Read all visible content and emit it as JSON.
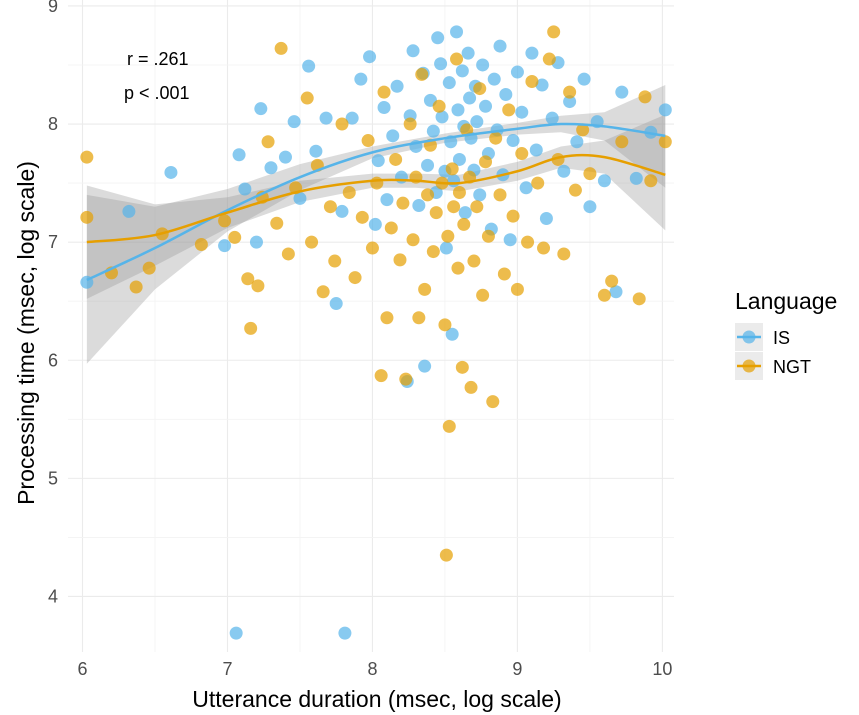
{
  "chart_data": {
    "type": "scatter",
    "xlabel": "Utterance duration (msec, log scale)",
    "ylabel": "Processing time (msec, log scale)",
    "xlim": [
      5.9,
      10.08
    ],
    "ylim": [
      3.53,
      9.05
    ],
    "x_ticks": [
      6,
      7,
      8,
      9,
      10
    ],
    "y_ticks": [
      4,
      5,
      6,
      7,
      8,
      9
    ],
    "grid": true,
    "legend": {
      "title": "Language",
      "position": "right"
    },
    "annotations": [
      "r = .261",
      "p < .001"
    ],
    "series": [
      {
        "name": "IS",
        "color": "#56B4E9",
        "points": [
          [
            6.03,
            6.66
          ],
          [
            6.32,
            7.26
          ],
          [
            6.61,
            7.59
          ],
          [
            6.98,
            6.97
          ],
          [
            7.06,
            3.69
          ],
          [
            7.08,
            7.74
          ],
          [
            7.12,
            7.45
          ],
          [
            7.2,
            7.0
          ],
          [
            7.23,
            8.13
          ],
          [
            7.3,
            7.63
          ],
          [
            7.4,
            7.72
          ],
          [
            7.46,
            8.02
          ],
          [
            7.5,
            7.37
          ],
          [
            7.56,
            8.49
          ],
          [
            7.61,
            7.77
          ],
          [
            7.68,
            8.05
          ],
          [
            7.75,
            6.48
          ],
          [
            7.79,
            7.26
          ],
          [
            7.81,
            3.69
          ],
          [
            7.86,
            8.05
          ],
          [
            7.92,
            8.38
          ],
          [
            7.98,
            8.57
          ],
          [
            8.02,
            7.15
          ],
          [
            8.04,
            7.69
          ],
          [
            8.08,
            8.14
          ],
          [
            8.1,
            7.36
          ],
          [
            8.14,
            7.9
          ],
          [
            8.17,
            8.32
          ],
          [
            8.2,
            7.55
          ],
          [
            8.24,
            5.82
          ],
          [
            8.26,
            8.07
          ],
          [
            8.28,
            8.62
          ],
          [
            8.3,
            7.81
          ],
          [
            8.32,
            7.31
          ],
          [
            8.35,
            8.43
          ],
          [
            8.36,
            5.95
          ],
          [
            8.38,
            7.65
          ],
          [
            8.4,
            8.2
          ],
          [
            8.42,
            7.94
          ],
          [
            8.44,
            7.42
          ],
          [
            8.45,
            8.73
          ],
          [
            8.47,
            8.51
          ],
          [
            8.48,
            8.06
          ],
          [
            8.5,
            7.6
          ],
          [
            8.51,
            6.95
          ],
          [
            8.53,
            8.35
          ],
          [
            8.54,
            7.85
          ],
          [
            8.55,
            6.22
          ],
          [
            8.56,
            7.52
          ],
          [
            8.58,
            8.78
          ],
          [
            8.59,
            8.12
          ],
          [
            8.6,
            7.7
          ],
          [
            8.62,
            8.45
          ],
          [
            8.63,
            7.98
          ],
          [
            8.64,
            7.25
          ],
          [
            8.66,
            8.6
          ],
          [
            8.67,
            8.22
          ],
          [
            8.68,
            7.88
          ],
          [
            8.7,
            7.61
          ],
          [
            8.71,
            8.32
          ],
          [
            8.72,
            8.02
          ],
          [
            8.74,
            7.4
          ],
          [
            8.76,
            8.5
          ],
          [
            8.78,
            8.15
          ],
          [
            8.8,
            7.75
          ],
          [
            8.82,
            7.11
          ],
          [
            8.84,
            8.38
          ],
          [
            8.86,
            7.95
          ],
          [
            8.88,
            8.66
          ],
          [
            8.9,
            7.57
          ],
          [
            8.92,
            8.25
          ],
          [
            8.95,
            7.02
          ],
          [
            8.97,
            7.86
          ],
          [
            9.0,
            8.44
          ],
          [
            9.03,
            8.1
          ],
          [
            9.06,
            7.46
          ],
          [
            9.1,
            8.6
          ],
          [
            9.13,
            7.78
          ],
          [
            9.17,
            8.33
          ],
          [
            9.2,
            7.2
          ],
          [
            9.24,
            8.05
          ],
          [
            9.28,
            8.52
          ],
          [
            9.32,
            7.6
          ],
          [
            9.36,
            8.19
          ],
          [
            9.41,
            7.85
          ],
          [
            9.46,
            8.38
          ],
          [
            9.5,
            7.3
          ],
          [
            9.55,
            8.02
          ],
          [
            9.6,
            7.52
          ],
          [
            9.68,
            6.58
          ],
          [
            9.72,
            8.27
          ],
          [
            9.82,
            7.54
          ],
          [
            9.92,
            7.93
          ],
          [
            10.02,
            8.12
          ]
        ],
        "trend": [
          [
            6.03,
            6.68
          ],
          [
            6.5,
            6.95
          ],
          [
            7.0,
            7.27
          ],
          [
            7.5,
            7.55
          ],
          [
            8.0,
            7.76
          ],
          [
            8.5,
            7.88
          ],
          [
            9.0,
            7.96
          ],
          [
            9.3,
            8.0
          ],
          [
            9.6,
            7.98
          ],
          [
            10.02,
            7.9
          ]
        ],
        "ci_upper": [
          [
            6.03,
            7.4
          ],
          [
            6.5,
            7.3
          ],
          [
            7.0,
            7.45
          ],
          [
            7.5,
            7.66
          ],
          [
            8.0,
            7.81
          ],
          [
            8.5,
            7.92
          ],
          [
            9.0,
            8.01
          ],
          [
            9.3,
            8.07
          ],
          [
            9.6,
            8.1
          ],
          [
            10.02,
            8.33
          ]
        ],
        "ci_lower": [
          [
            6.03,
            5.97
          ],
          [
            6.5,
            6.6
          ],
          [
            7.0,
            7.09
          ],
          [
            7.5,
            7.44
          ],
          [
            8.0,
            7.71
          ],
          [
            8.5,
            7.84
          ],
          [
            9.0,
            7.91
          ],
          [
            9.3,
            7.93
          ],
          [
            9.6,
            7.86
          ],
          [
            10.02,
            7.46
          ]
        ]
      },
      {
        "name": "NGT",
        "color": "#E69F00",
        "points": [
          [
            6.03,
            7.72
          ],
          [
            6.03,
            7.21
          ],
          [
            6.2,
            6.74
          ],
          [
            6.37,
            6.62
          ],
          [
            6.46,
            6.78
          ],
          [
            6.55,
            7.07
          ],
          [
            6.82,
            6.98
          ],
          [
            6.98,
            7.18
          ],
          [
            7.05,
            7.04
          ],
          [
            7.14,
            6.69
          ],
          [
            7.16,
            6.27
          ],
          [
            7.21,
            6.63
          ],
          [
            7.24,
            7.38
          ],
          [
            7.28,
            7.85
          ],
          [
            7.34,
            7.16
          ],
          [
            7.37,
            8.64
          ],
          [
            7.42,
            6.9
          ],
          [
            7.47,
            7.46
          ],
          [
            7.55,
            8.22
          ],
          [
            7.58,
            7.0
          ],
          [
            7.62,
            7.65
          ],
          [
            7.66,
            6.58
          ],
          [
            7.71,
            7.3
          ],
          [
            7.74,
            6.84
          ],
          [
            7.79,
            8.0
          ],
          [
            7.84,
            7.42
          ],
          [
            7.88,
            6.7
          ],
          [
            7.93,
            7.21
          ],
          [
            7.97,
            7.86
          ],
          [
            8.0,
            6.95
          ],
          [
            8.03,
            7.5
          ],
          [
            8.06,
            5.87
          ],
          [
            8.08,
            8.27
          ],
          [
            8.1,
            6.36
          ],
          [
            8.13,
            7.12
          ],
          [
            8.16,
            7.7
          ],
          [
            8.19,
            6.85
          ],
          [
            8.21,
            7.33
          ],
          [
            8.23,
            5.84
          ],
          [
            8.26,
            8.0
          ],
          [
            8.28,
            7.02
          ],
          [
            8.3,
            7.55
          ],
          [
            8.32,
            6.36
          ],
          [
            8.34,
            8.42
          ],
          [
            8.36,
            6.6
          ],
          [
            8.38,
            7.4
          ],
          [
            8.4,
            7.82
          ],
          [
            8.42,
            6.92
          ],
          [
            8.44,
            7.25
          ],
          [
            8.46,
            8.15
          ],
          [
            8.48,
            7.5
          ],
          [
            8.5,
            6.3
          ],
          [
            8.51,
            4.35
          ],
          [
            8.52,
            7.05
          ],
          [
            8.53,
            5.44
          ],
          [
            8.55,
            7.62
          ],
          [
            8.56,
            7.3
          ],
          [
            8.58,
            8.55
          ],
          [
            8.59,
            6.78
          ],
          [
            8.6,
            7.42
          ],
          [
            8.62,
            5.94
          ],
          [
            8.63,
            7.15
          ],
          [
            8.65,
            7.95
          ],
          [
            8.67,
            7.55
          ],
          [
            8.68,
            5.77
          ],
          [
            8.7,
            6.84
          ],
          [
            8.72,
            7.3
          ],
          [
            8.74,
            8.3
          ],
          [
            8.76,
            6.55
          ],
          [
            8.78,
            7.68
          ],
          [
            8.8,
            7.05
          ],
          [
            8.83,
            5.65
          ],
          [
            8.85,
            7.88
          ],
          [
            8.88,
            7.4
          ],
          [
            8.91,
            6.73
          ],
          [
            8.94,
            8.12
          ],
          [
            8.97,
            7.22
          ],
          [
            9.0,
            6.6
          ],
          [
            9.03,
            7.75
          ],
          [
            9.07,
            7.0
          ],
          [
            9.1,
            8.36
          ],
          [
            9.14,
            7.5
          ],
          [
            9.18,
            6.95
          ],
          [
            9.22,
            8.55
          ],
          [
            9.25,
            8.78
          ],
          [
            9.28,
            7.7
          ],
          [
            9.32,
            6.9
          ],
          [
            9.36,
            8.27
          ],
          [
            9.4,
            7.44
          ],
          [
            9.45,
            7.95
          ],
          [
            9.5,
            7.58
          ],
          [
            9.6,
            6.55
          ],
          [
            9.65,
            6.67
          ],
          [
            9.72,
            7.85
          ],
          [
            9.84,
            6.52
          ],
          [
            9.88,
            8.23
          ],
          [
            9.92,
            7.52
          ],
          [
            10.02,
            7.85
          ]
        ],
        "trend": [
          [
            6.03,
            7.0
          ],
          [
            6.5,
            7.06
          ],
          [
            7.0,
            7.25
          ],
          [
            7.5,
            7.43
          ],
          [
            8.0,
            7.52
          ],
          [
            8.3,
            7.52
          ],
          [
            8.6,
            7.5
          ],
          [
            9.0,
            7.6
          ],
          [
            9.3,
            7.72
          ],
          [
            9.6,
            7.72
          ],
          [
            10.02,
            7.57
          ]
        ],
        "ci_upper": [
          [
            6.03,
            7.48
          ],
          [
            6.5,
            7.32
          ],
          [
            7.0,
            7.38
          ],
          [
            7.5,
            7.52
          ],
          [
            8.0,
            7.58
          ],
          [
            8.3,
            7.58
          ],
          [
            8.6,
            7.57
          ],
          [
            9.0,
            7.68
          ],
          [
            9.3,
            7.81
          ],
          [
            9.6,
            7.86
          ],
          [
            10.02,
            8.08
          ]
        ],
        "ci_lower": [
          [
            6.03,
            6.52
          ],
          [
            6.5,
            6.8
          ],
          [
            7.0,
            7.12
          ],
          [
            7.5,
            7.34
          ],
          [
            8.0,
            7.46
          ],
          [
            8.3,
            7.46
          ],
          [
            8.6,
            7.43
          ],
          [
            9.0,
            7.52
          ],
          [
            9.3,
            7.63
          ],
          [
            9.6,
            7.58
          ],
          [
            10.02,
            7.1
          ]
        ]
      }
    ]
  }
}
